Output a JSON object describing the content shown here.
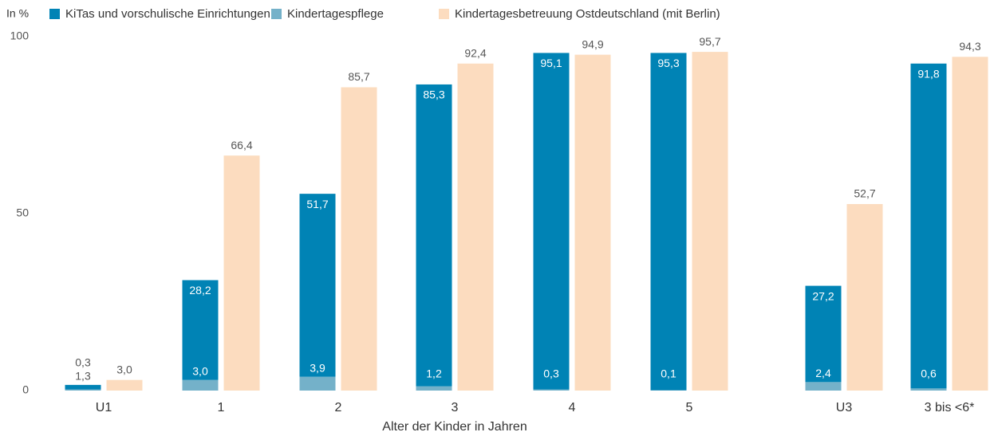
{
  "chart_data": {
    "type": "bar",
    "y_label": "In %",
    "x_label": "Alter der Kinder in Jahren",
    "categories": [
      "U1",
      "1",
      "2",
      "3",
      "4",
      "5",
      null,
      "U3",
      "3 bis <6*"
    ],
    "series": [
      {
        "name": "KiTas und vorschulische Einrichtungen",
        "color": "#0083b5",
        "stack": "a",
        "values": [
          1.3,
          28.2,
          51.7,
          85.3,
          95.1,
          95.3,
          null,
          27.2,
          91.8
        ],
        "value_labels": [
          "1,3",
          "28,2",
          "51,7",
          "85,3",
          "95,1",
          "95,3",
          null,
          "27,2",
          "91,8"
        ]
      },
      {
        "name": "Kindertagespflege",
        "color": "#74b1c9",
        "stack": "a",
        "values": [
          0.3,
          3.0,
          3.9,
          1.2,
          0.3,
          0.1,
          null,
          2.4,
          0.6
        ],
        "value_labels": [
          "0,3",
          "3,0",
          "3,9",
          "1,2",
          "0,3",
          "0,1",
          null,
          "2,4",
          "0,6"
        ]
      },
      {
        "name": "Kindertagesbetreuung Ostdeutschland (mit Berlin)",
        "color": "#fcdcbf",
        "stack": "b",
        "values": [
          3.0,
          66.4,
          85.7,
          92.4,
          94.9,
          95.7,
          null,
          52.7,
          94.3
        ],
        "value_labels": [
          "3,0",
          "66,4",
          "85,7",
          "92,4",
          "94,9",
          "95,7",
          null,
          "52,7",
          "94,3"
        ]
      }
    ],
    "ylim": [
      0,
      100
    ],
    "yticks": [
      0,
      50,
      100
    ],
    "grid": false,
    "legend": "top"
  }
}
